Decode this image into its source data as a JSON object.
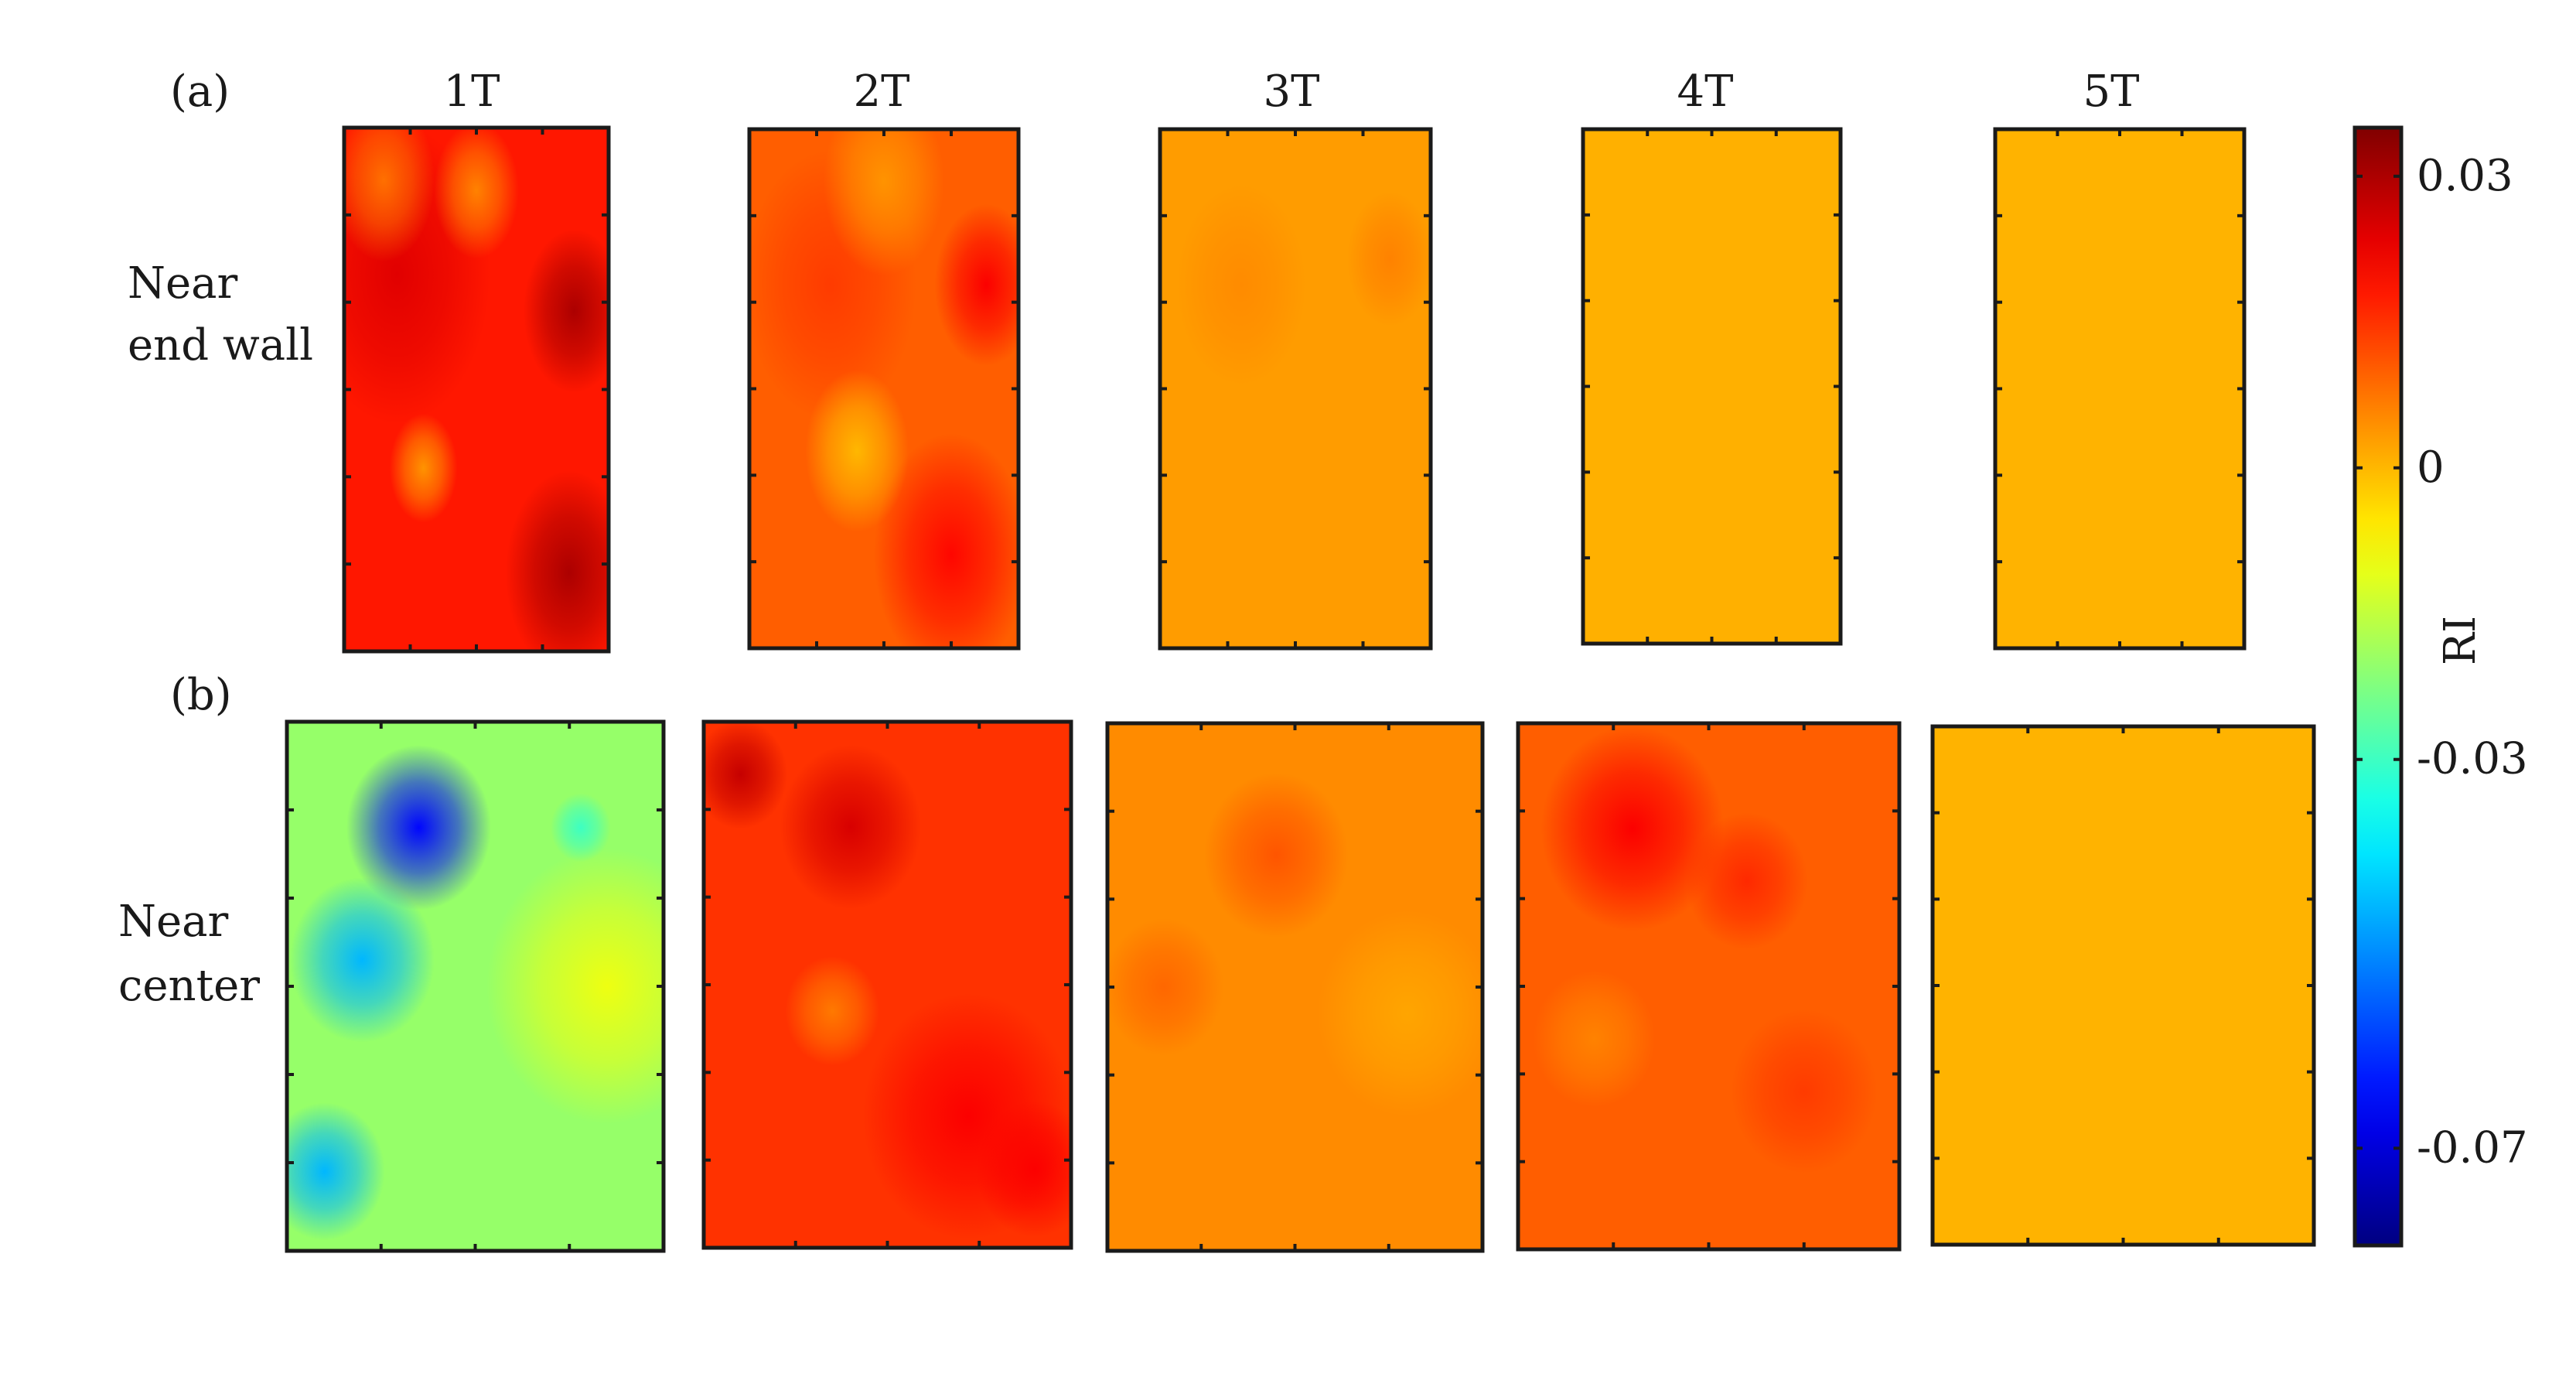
{
  "figure": {
    "row_a_tag": "(a)",
    "row_b_tag": "(b)",
    "row_a_label": [
      "Near",
      "end wall"
    ],
    "row_b_label": [
      "Near",
      "center"
    ],
    "column_titles": [
      "1T",
      "2T",
      "3T",
      "4T",
      "5T"
    ]
  },
  "colorbar": {
    "label": "RI",
    "ticks": [
      {
        "value": 0.03,
        "text": "0.03"
      },
      {
        "value": 0,
        "text": "0"
      },
      {
        "value": -0.03,
        "text": "-0.03"
      },
      {
        "value": -0.07,
        "text": "-0.07"
      }
    ],
    "range": [
      -0.08,
      0.035
    ],
    "colormap": "jet"
  },
  "chart_data": {
    "type": "heatmap",
    "colorbar_label": "RI",
    "zlim": [
      -0.08,
      0.035
    ],
    "panels": [
      {
        "row": "(a)",
        "column": "1T",
        "typical": 0.018,
        "peak": 0.03,
        "blobs": [
          {
            "u": 0.2,
            "v": 0.28,
            "r": 0.22,
            "d": 0.006
          },
          {
            "u": 0.87,
            "v": 0.35,
            "r": 0.12,
            "d": 0.012
          },
          {
            "u": 0.85,
            "v": 0.85,
            "r": 0.15,
            "d": 0.012
          },
          {
            "u": 0.3,
            "v": 0.65,
            "r": 0.08,
            "d": -0.014
          },
          {
            "u": 0.5,
            "v": 0.12,
            "r": 0.1,
            "d": -0.012
          },
          {
            "u": 0.15,
            "v": 0.1,
            "r": 0.12,
            "d": -0.01
          }
        ]
      },
      {
        "row": "(a)",
        "column": "2T",
        "typical": 0.01,
        "peak": 0.022,
        "blobs": [
          {
            "u": 0.88,
            "v": 0.3,
            "r": 0.12,
            "d": 0.011
          },
          {
            "u": 0.75,
            "v": 0.82,
            "r": 0.18,
            "d": 0.01
          },
          {
            "u": 0.3,
            "v": 0.3,
            "r": 0.2,
            "d": 0.004
          },
          {
            "u": 0.4,
            "v": 0.62,
            "r": 0.12,
            "d": -0.01
          },
          {
            "u": 0.5,
            "v": 0.1,
            "r": 0.14,
            "d": -0.006
          }
        ]
      },
      {
        "row": "(a)",
        "column": "3T",
        "typical": 0.003,
        "peak": 0.006,
        "blobs": [
          {
            "u": 0.85,
            "v": 0.25,
            "r": 0.1,
            "d": 0.003
          },
          {
            "u": 0.3,
            "v": 0.3,
            "r": 0.15,
            "d": 0.002
          }
        ]
      },
      {
        "row": "(a)",
        "column": "4T",
        "typical": 0.0008,
        "peak": 0.001,
        "blobs": []
      },
      {
        "row": "(a)",
        "column": "5T",
        "typical": 0.0005,
        "peak": 0.001,
        "blobs": []
      },
      {
        "row": "(b)",
        "column": "1T",
        "typical": -0.02,
        "peak": -0.07,
        "blobs": [
          {
            "u": 0.35,
            "v": 0.2,
            "r": 0.12,
            "d": -0.045
          },
          {
            "u": 0.2,
            "v": 0.45,
            "r": 0.12,
            "d": -0.025
          },
          {
            "u": 0.1,
            "v": 0.85,
            "r": 0.1,
            "d": -0.025
          },
          {
            "u": 0.85,
            "v": 0.5,
            "r": 0.2,
            "d": 0.01
          },
          {
            "u": 0.78,
            "v": 0.2,
            "r": 0.05,
            "d": -0.01
          }
        ]
      },
      {
        "row": "(b)",
        "column": "2T",
        "typical": 0.015,
        "peak": 0.03,
        "blobs": [
          {
            "u": 0.1,
            "v": 0.1,
            "r": 0.08,
            "d": 0.012
          },
          {
            "u": 0.4,
            "v": 0.2,
            "r": 0.12,
            "d": 0.01
          },
          {
            "u": 0.72,
            "v": 0.75,
            "r": 0.18,
            "d": 0.006
          },
          {
            "u": 0.35,
            "v": 0.55,
            "r": 0.08,
            "d": -0.008
          },
          {
            "u": 0.9,
            "v": 0.85,
            "r": 0.1,
            "d": 0.006
          }
        ]
      },
      {
        "row": "(b)",
        "column": "3T",
        "typical": 0.005,
        "peak": 0.012,
        "blobs": [
          {
            "u": 0.45,
            "v": 0.25,
            "r": 0.12,
            "d": 0.006
          },
          {
            "u": 0.15,
            "v": 0.5,
            "r": 0.1,
            "d": 0.004
          },
          {
            "u": 0.8,
            "v": 0.55,
            "r": 0.15,
            "d": -0.003
          }
        ]
      },
      {
        "row": "(b)",
        "column": "4T",
        "typical": 0.01,
        "peak": 0.025,
        "blobs": [
          {
            "u": 0.3,
            "v": 0.2,
            "r": 0.15,
            "d": 0.011
          },
          {
            "u": 0.6,
            "v": 0.3,
            "r": 0.1,
            "d": 0.006
          },
          {
            "u": 0.2,
            "v": 0.6,
            "r": 0.1,
            "d": -0.004
          },
          {
            "u": 0.75,
            "v": 0.7,
            "r": 0.12,
            "d": 0.004
          }
        ]
      },
      {
        "row": "(b)",
        "column": "5T",
        "typical": 0.0005,
        "peak": 0.001,
        "blobs": []
      }
    ]
  }
}
